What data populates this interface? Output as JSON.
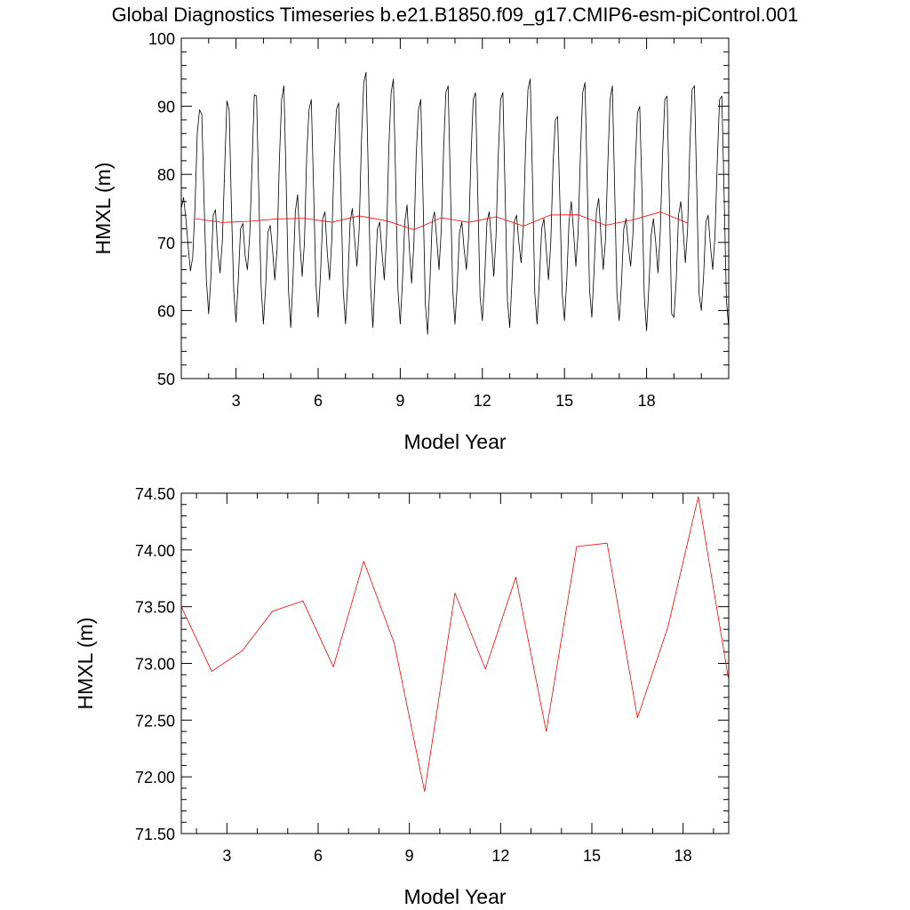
{
  "title": "Global Diagnostics Timeseries b.e21.B1850.f09_g17.CMIP6-esm-piControl.001",
  "colors": {
    "monthly": "#000000",
    "annual": "#ff0000",
    "axes": "#000000"
  },
  "chart_data": [
    {
      "type": "line",
      "xlabel": "Model Year",
      "ylabel": "HMXL (m)",
      "xlim": [
        1,
        21
      ],
      "ylim": [
        50,
        100
      ],
      "xticks": [
        3,
        6,
        9,
        12,
        15,
        18
      ],
      "yticks": [
        50,
        60,
        70,
        80,
        90,
        100
      ],
      "y_decimals": 0,
      "series": [
        {
          "color": "#000000",
          "x_start": 1.0,
          "x_step": 0.08333,
          "values": [
            75.0,
            76.6,
            73.5,
            69.5,
            65.8,
            67.8,
            75.0,
            86.0,
            89.5,
            88.8,
            76.0,
            64.5,
            59.5,
            65.0,
            74.0,
            74.8,
            68.8,
            65.5,
            70.2,
            80.5,
            90.8,
            89.5,
            75.0,
            63.0,
            58.3,
            64.5,
            72.0,
            72.8,
            68.0,
            66.0,
            71.0,
            81.0,
            91.7,
            91.5,
            77.0,
            63.5,
            58.0,
            63.5,
            71.5,
            72.5,
            69.0,
            64.5,
            69.0,
            82.0,
            91.0,
            93.0,
            78.5,
            63.0,
            57.5,
            65.0,
            74.5,
            77.0,
            70.0,
            65.0,
            70.0,
            83.0,
            89.5,
            91.0,
            78.0,
            64.0,
            59.0,
            65.0,
            73.5,
            74.5,
            68.5,
            64.5,
            70.5,
            82.0,
            89.5,
            90.5,
            77.5,
            63.0,
            58.0,
            64.0,
            73.0,
            75.0,
            70.5,
            66.5,
            72.0,
            85.0,
            93.5,
            95.0,
            80.0,
            63.5,
            57.5,
            65.0,
            72.0,
            73.0,
            68.5,
            64.5,
            71.0,
            84.0,
            92.0,
            94.0,
            79.0,
            63.0,
            58.0,
            64.5,
            73.0,
            75.5,
            69.0,
            64.0,
            70.0,
            83.0,
            89.5,
            91.0,
            76.5,
            61.0,
            56.5,
            64.0,
            73.0,
            74.5,
            70.5,
            66.0,
            72.0,
            83.5,
            92.0,
            93.0,
            78.0,
            63.0,
            58.0,
            64.0,
            71.5,
            73.0,
            69.0,
            66.0,
            71.0,
            82.5,
            91.0,
            92.0,
            77.0,
            62.0,
            58.5,
            64.5,
            73.0,
            74.5,
            70.0,
            65.0,
            71.0,
            83.0,
            91.0,
            92.0,
            77.0,
            61.5,
            57.5,
            64.5,
            73.0,
            74.0,
            70.0,
            67.0,
            72.5,
            84.5,
            92.5,
            94.0,
            79.0,
            62.5,
            58.0,
            64.5,
            72.0,
            73.5,
            69.0,
            64.5,
            70.0,
            81.5,
            88.0,
            88.5,
            76.0,
            62.5,
            58.5,
            64.5,
            73.0,
            76.0,
            71.5,
            66.5,
            71.5,
            83.0,
            92.0,
            93.5,
            78.5,
            63.0,
            59.0,
            66.0,
            74.5,
            76.5,
            71.0,
            66.0,
            70.5,
            81.5,
            91.0,
            93.0,
            78.0,
            62.5,
            58.5,
            64.0,
            72.0,
            73.5,
            69.5,
            66.5,
            71.0,
            81.0,
            89.0,
            90.0,
            77.0,
            62.0,
            57.0,
            63.5,
            71.0,
            73.5,
            70.0,
            65.5,
            71.5,
            83.0,
            91.0,
            91.5,
            76.0,
            59.5,
            59.0,
            64.5,
            74.0,
            76.0,
            72.0,
            67.0,
            72.0,
            84.5,
            92.5,
            93.0,
            78.0,
            62.5,
            60.0,
            65.0,
            73.0,
            74.0,
            69.5,
            66.0,
            71.0,
            82.0,
            91.0,
            91.5,
            77.0,
            61.5,
            57.5,
            63.0,
            71.0,
            73.0,
            68.5,
            65.5,
            71.0,
            83.0,
            91.5,
            93.0,
            79.0,
            60.0
          ]
        },
        {
          "color": "#ff0000",
          "x": [
            1.5,
            2.5,
            3.5,
            4.5,
            5.5,
            6.5,
            7.5,
            8.5,
            9.5,
            10.5,
            11.5,
            12.5,
            13.5,
            14.5,
            15.5,
            16.5,
            17.5,
            18.5,
            19.5
          ],
          "values": [
            73.5,
            72.93,
            73.11,
            73.46,
            73.55,
            72.97,
            73.9,
            73.18,
            71.87,
            73.62,
            72.95,
            73.76,
            72.4,
            74.03,
            74.06,
            72.52,
            73.32,
            74.47,
            72.85
          ]
        }
      ]
    },
    {
      "type": "line",
      "xlabel": "Model Year",
      "ylabel": "HMXL (m)",
      "xlim": [
        1.5,
        19.5
      ],
      "ylim": [
        71.5,
        74.5
      ],
      "xticks": [
        3,
        6,
        9,
        12,
        15,
        18
      ],
      "yticks": [
        71.5,
        72.0,
        72.5,
        73.0,
        73.5,
        74.0,
        74.5
      ],
      "y_decimals": 2,
      "series": [
        {
          "color": "#ff0000",
          "x": [
            1.5,
            2.5,
            3.5,
            4.5,
            5.5,
            6.5,
            7.5,
            8.5,
            9.5,
            10.5,
            11.5,
            12.5,
            13.5,
            14.5,
            15.5,
            16.5,
            17.5,
            18.5,
            19.5
          ],
          "values": [
            73.5,
            72.93,
            73.11,
            73.46,
            73.55,
            72.97,
            73.9,
            73.18,
            71.87,
            73.62,
            72.95,
            73.76,
            72.4,
            74.03,
            74.06,
            72.52,
            73.32,
            74.47,
            72.85
          ]
        }
      ]
    }
  ]
}
